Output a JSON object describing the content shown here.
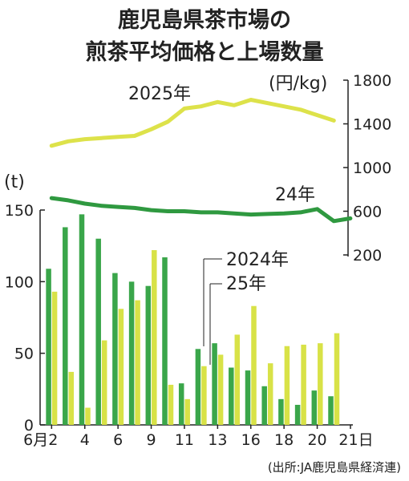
{
  "chart_data": {
    "type": "bar+line",
    "title_lines": [
      "鹿児島県茶市場の",
      "煎茶平均価格と上場数量"
    ],
    "categories": [
      "2",
      "3",
      "4",
      "5",
      "6",
      "7",
      "8",
      "9",
      "10",
      "11",
      "12",
      "13",
      "14",
      "15",
      "16",
      "17",
      "18",
      "19",
      "20",
      "21"
    ],
    "x_tick_labels": [
      "6月2",
      "4",
      "6",
      "9",
      "11",
      "13",
      "16",
      "18",
      "20",
      "21日"
    ],
    "quantity_axis": {
      "unit": "(t)",
      "ticks": [
        "150",
        "100",
        "50",
        "0"
      ],
      "ylim": [
        0,
        150
      ]
    },
    "price_axis": {
      "unit": "(円/kg)",
      "ticks": [
        "1800",
        "1400",
        "1000",
        "600",
        "200"
      ],
      "ylim": [
        200,
        1800
      ]
    },
    "bar_series": [
      {
        "name": "2024年",
        "color": "#3aa64a",
        "values": [
          109,
          138,
          147,
          130,
          106,
          100,
          97,
          117,
          29,
          53,
          57,
          40,
          38,
          27,
          18,
          14,
          24,
          20,
          null,
          null
        ]
      },
      {
        "name": "25年",
        "color": "#d8e247",
        "values": [
          93,
          37,
          12,
          59,
          81,
          87,
          122,
          28,
          18,
          41,
          49,
          63,
          83,
          43,
          55,
          56,
          57,
          64,
          null,
          null
        ]
      }
    ],
    "line_series": [
      {
        "name": "2025年",
        "color": "#dde24a",
        "values": [
          1200,
          1240,
          1260,
          1270,
          1280,
          1290,
          1350,
          1420,
          1540,
          1560,
          1600,
          1570,
          1620,
          1590,
          1560,
          1530,
          1480,
          1430,
          null,
          null
        ]
      },
      {
        "name": "24年",
        "color": "#2f9940",
        "values": [
          720,
          700,
          670,
          650,
          640,
          630,
          610,
          600,
          600,
          590,
          590,
          580,
          570,
          575,
          580,
          590,
          620,
          510,
          535,
          null
        ]
      }
    ],
    "source": "(出所:JA鹿児島県経済連)"
  }
}
